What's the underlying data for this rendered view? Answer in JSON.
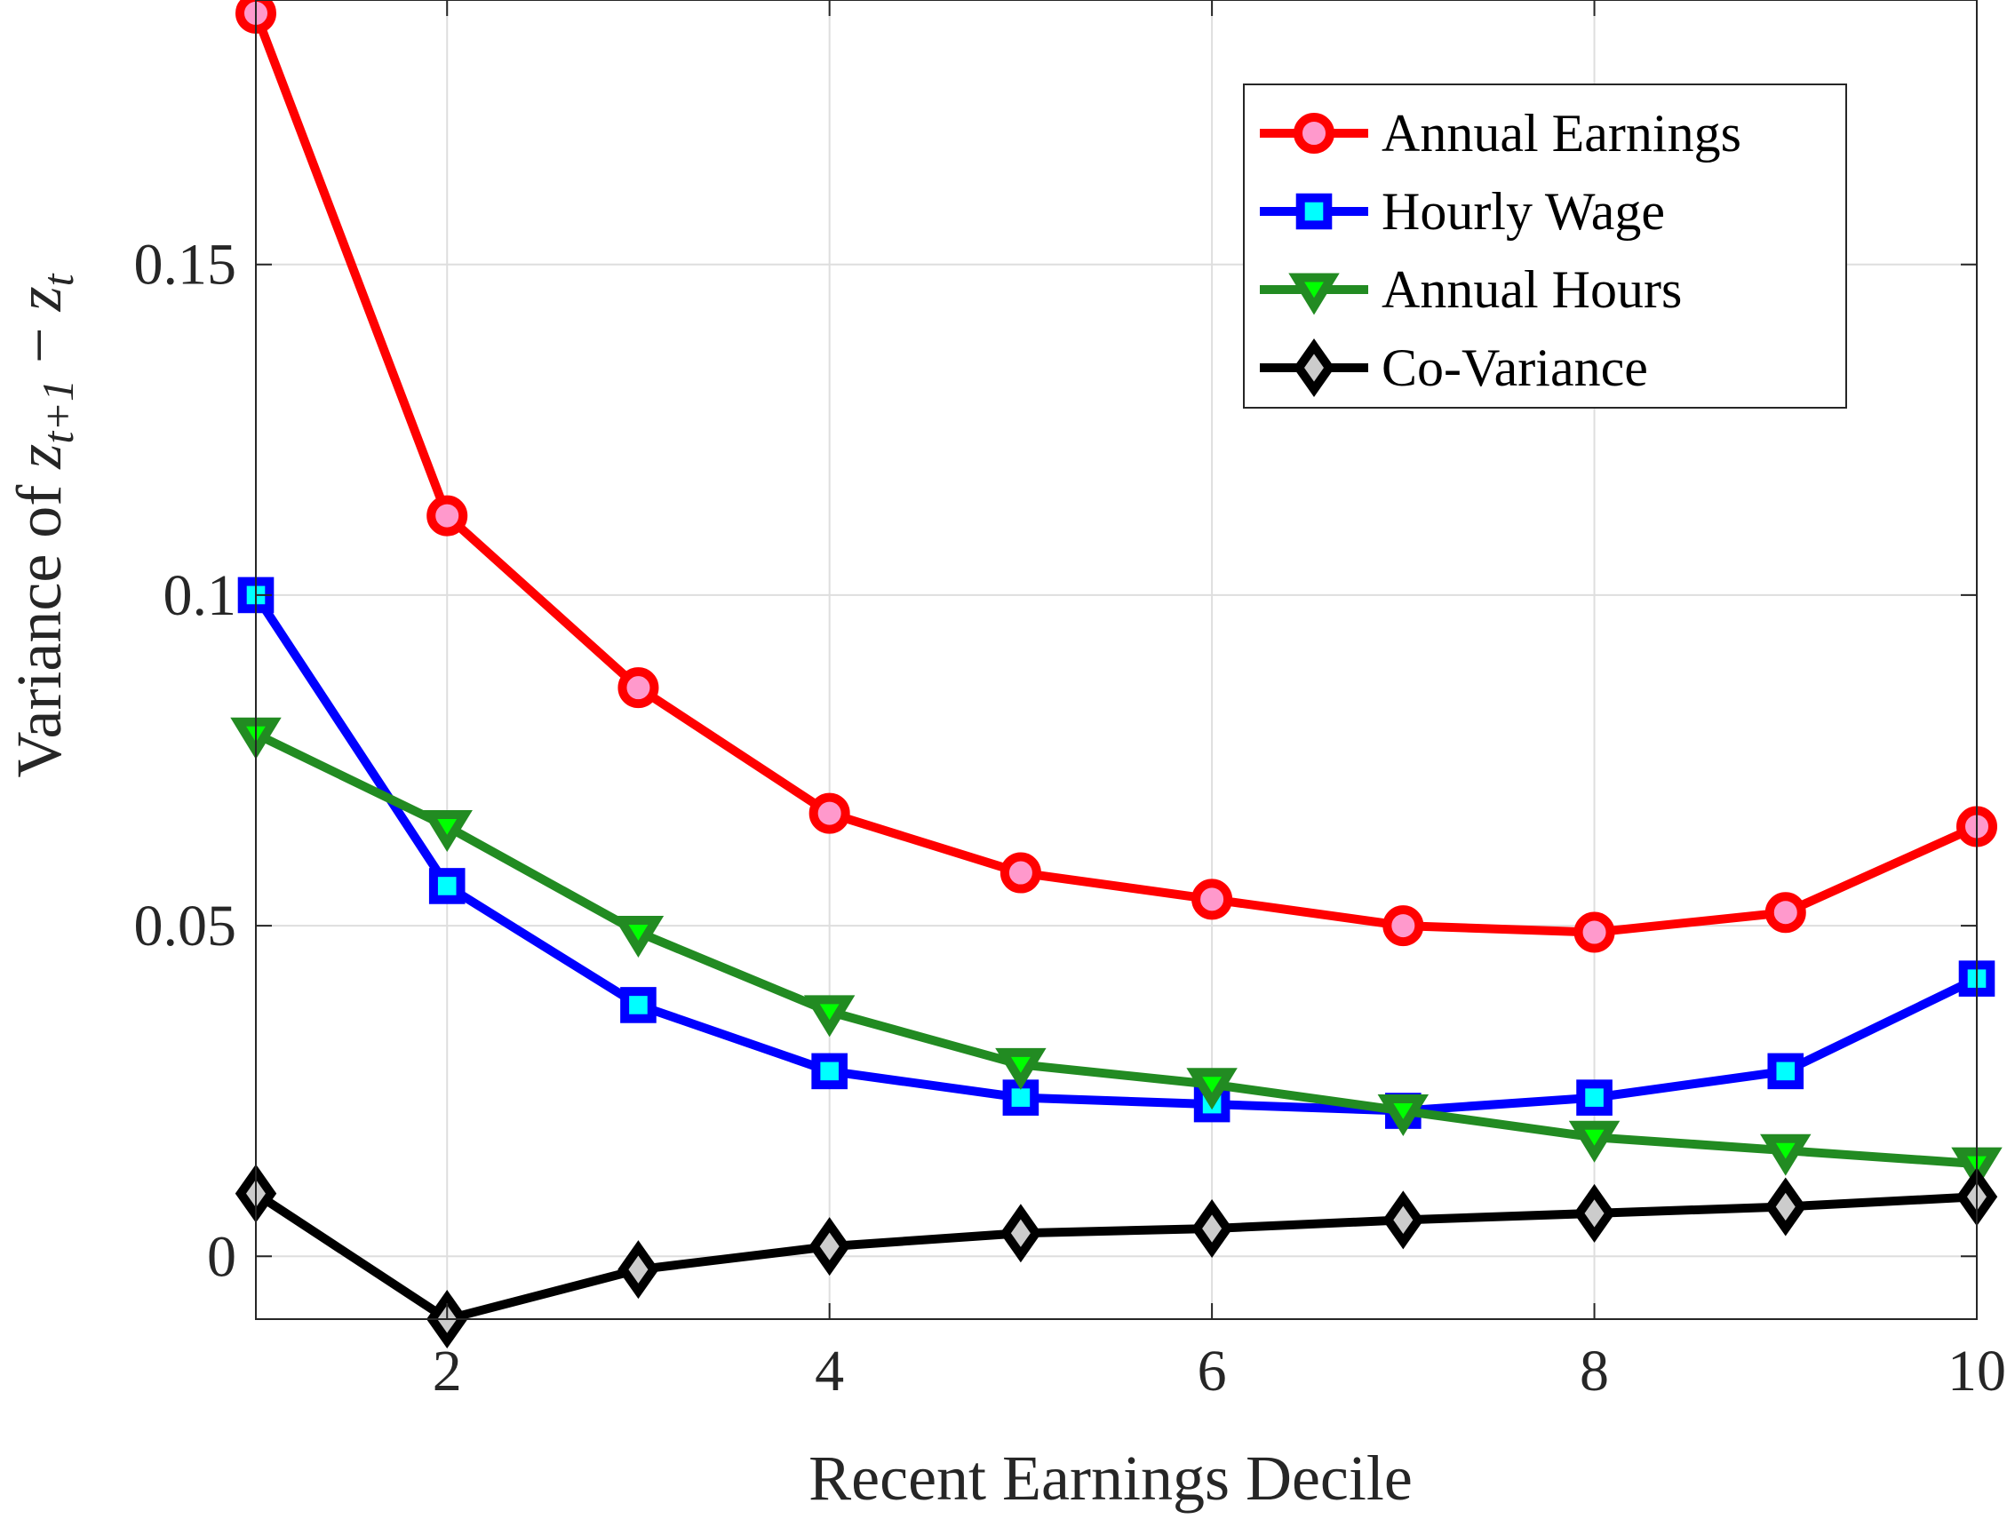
{
  "chart_data": {
    "type": "line",
    "title": "",
    "xlabel": "Recent Earnings Decile",
    "ylabel": {
      "prefix": "Variance of ",
      "z1": "z",
      "sub1": "t+1",
      "minus": " − ",
      "z2": "z",
      "sub2": "t"
    },
    "xlim": [
      1,
      10
    ],
    "ylim": [
      -0.0095,
      0.19
    ],
    "xticks": [
      2,
      4,
      6,
      8,
      10
    ],
    "xtick_labels": [
      "2",
      "4",
      "6",
      "8",
      "10"
    ],
    "yticks": [
      0,
      0.05,
      0.1,
      0.15
    ],
    "ytick_labels": [
      "0",
      "0.05",
      "0.1",
      "0.15"
    ],
    "grid": true,
    "legend_position": "top-right",
    "x": [
      1,
      2,
      3,
      4,
      5,
      6,
      7,
      8,
      9,
      10
    ],
    "series": [
      {
        "name": "Annual Earnings",
        "color": "#ff0000",
        "marker": "circle",
        "marker_fill": "#ff99cc",
        "values": [
          0.188,
          0.112,
          0.086,
          0.067,
          0.058,
          0.054,
          0.05,
          0.049,
          0.052,
          0.065
        ]
      },
      {
        "name": "Hourly Wage",
        "color": "#0000ff",
        "marker": "square",
        "marker_fill": "#00ffff",
        "values": [
          0.1,
          0.056,
          0.038,
          0.028,
          0.024,
          0.023,
          0.022,
          0.024,
          0.028,
          0.042
        ]
      },
      {
        "name": "Annual Hours",
        "color": "#228b22",
        "marker": "triangle-down",
        "marker_fill": "#00ff00",
        "values": [
          0.079,
          0.065,
          0.049,
          0.037,
          0.029,
          0.026,
          0.022,
          0.018,
          0.016,
          0.014
        ]
      },
      {
        "name": "Co-Variance",
        "color": "#000000",
        "marker": "diamond",
        "marker_fill": "#cccccc",
        "values": [
          0.0095,
          -0.0095,
          -0.002,
          0.0015,
          0.0035,
          0.0042,
          0.0055,
          0.0065,
          0.0075,
          0.009
        ]
      }
    ]
  }
}
